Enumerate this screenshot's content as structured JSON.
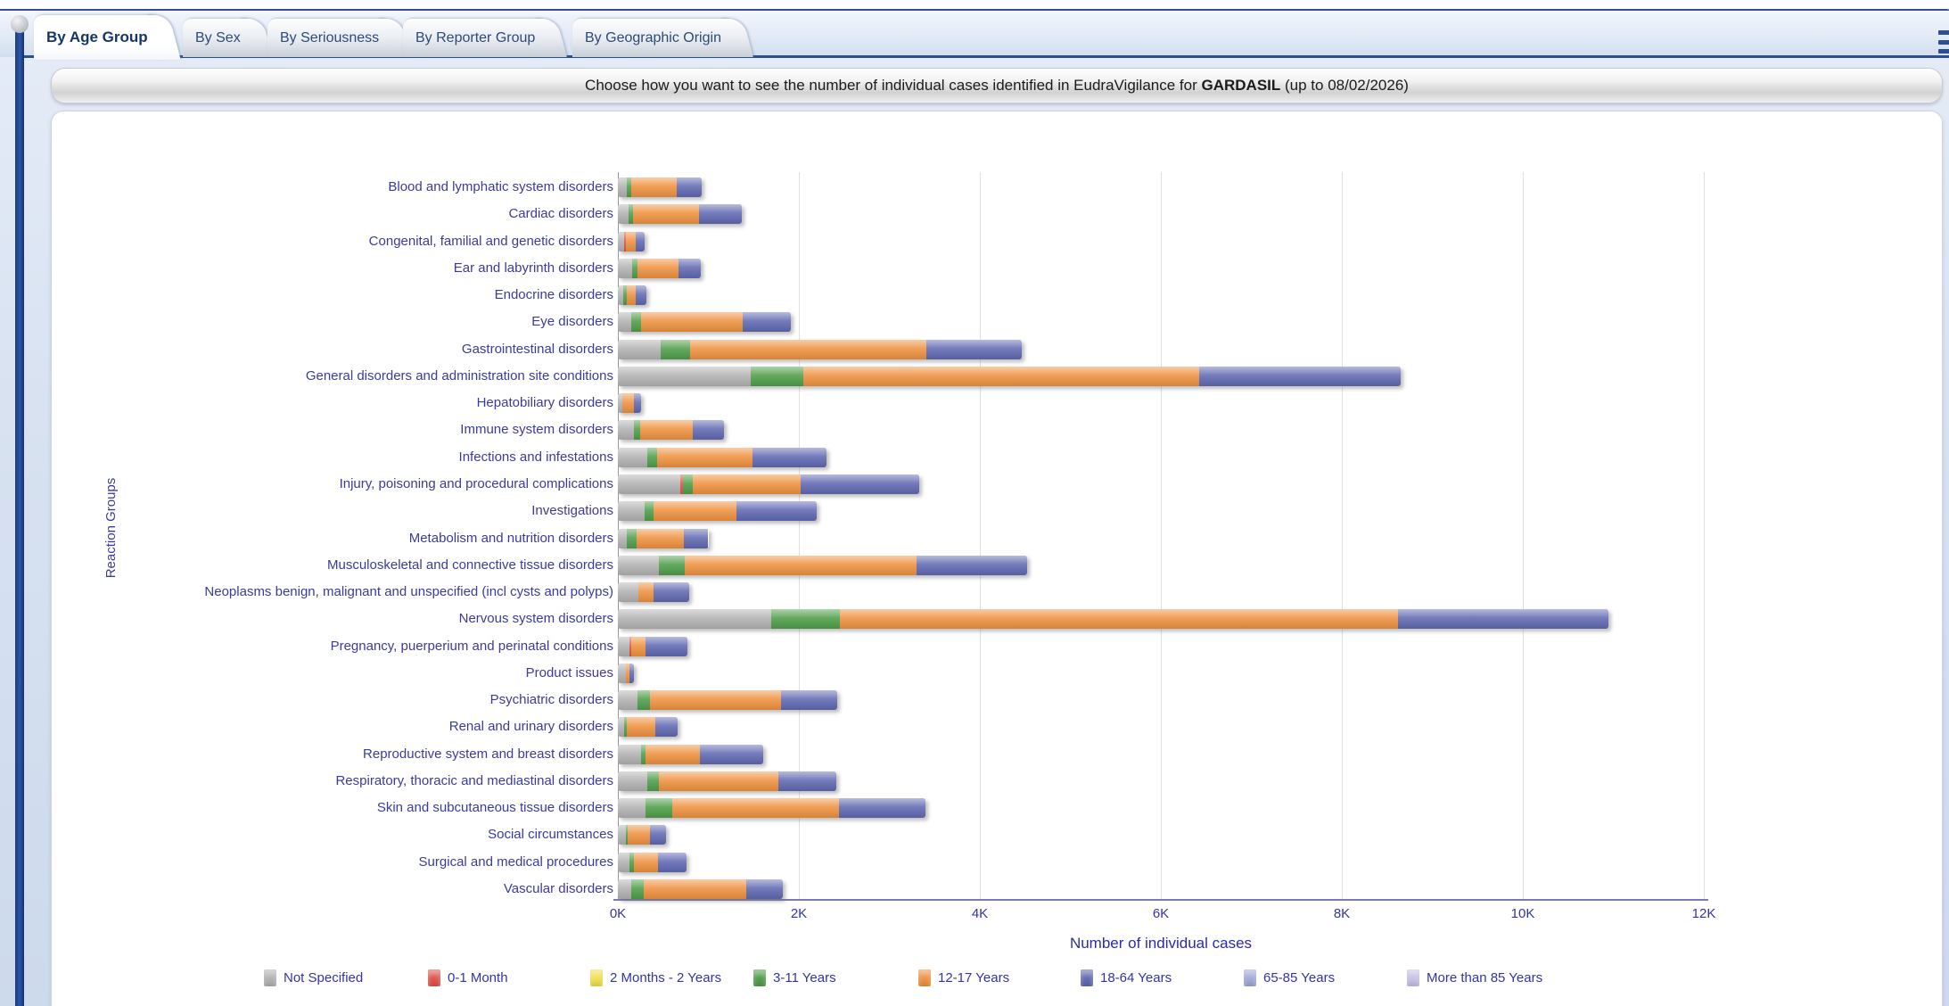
{
  "tabs": [
    {
      "label": "By Age Group",
      "active": true
    },
    {
      "label": "By Sex",
      "active": false
    },
    {
      "label": "By Seriousness",
      "active": false
    },
    {
      "label": "By Reporter Group",
      "active": false
    },
    {
      "label": "By Geographic Origin",
      "active": false
    }
  ],
  "title": {
    "prefix": "Choose how you want to see the number of individual cases identified in EudraVigilance for ",
    "product": "GARDASIL",
    "suffix": " (up to 08/02/2026)"
  },
  "chart_data": {
    "type": "bar",
    "orientation": "horizontal",
    "stacked": true,
    "xlabel": "Number of individual cases",
    "ylabel": "Reaction Groups",
    "xlim": [
      0,
      12000
    ],
    "x_ticks": [
      "0K",
      "2K",
      "4K",
      "6K",
      "8K",
      "10K",
      "12K"
    ],
    "grid": true,
    "legend_position": "bottom",
    "categories": [
      "Blood and lymphatic system disorders",
      "Cardiac disorders",
      "Congenital, familial and genetic disorders",
      "Ear and labyrinth disorders",
      "Endocrine disorders",
      "Eye disorders",
      "Gastrointestinal disorders",
      "General disorders and administration site conditions",
      "Hepatobiliary disorders",
      "Immune system disorders",
      "Infections and infestations",
      "Injury, poisoning and procedural complications",
      "Investigations",
      "Metabolism and nutrition disorders",
      "Musculoskeletal and connective tissue disorders",
      "Neoplasms benign, malignant and unspecified (incl cysts and polyps)",
      "Nervous system disorders",
      "Pregnancy, puerperium and perinatal conditions",
      "Product issues",
      "Psychiatric disorders",
      "Renal and urinary disorders",
      "Reproductive system and breast disorders",
      "Respiratory, thoracic and mediastinal disorders",
      "Skin and subcutaneous tissue disorders",
      "Social circumstances",
      "Surgical and medical procedures",
      "Vascular disorders"
    ],
    "series": [
      {
        "name": "Not Specified",
        "color": "#b2b2b2",
        "values": [
          100,
          120,
          70,
          160,
          60,
          150,
          470,
          1470,
          50,
          180,
          330,
          690,
          300,
          95,
          450,
          230,
          1690,
          130,
          90,
          220,
          70,
          260,
          330,
          310,
          85,
          130,
          150
        ]
      },
      {
        "name": "0-1 Month",
        "color": "#e0534a",
        "values": [
          0,
          0,
          20,
          0,
          0,
          0,
          0,
          0,
          0,
          0,
          0,
          30,
          0,
          0,
          0,
          0,
          0,
          15,
          0,
          0,
          0,
          0,
          0,
          0,
          0,
          0,
          0
        ]
      },
      {
        "name": "2 Months - 2 Years",
        "color": "#f2e04e",
        "values": [
          0,
          0,
          0,
          0,
          0,
          0,
          0,
          0,
          0,
          0,
          0,
          0,
          0,
          0,
          0,
          0,
          0,
          0,
          0,
          0,
          0,
          0,
          0,
          0,
          0,
          0,
          0
        ]
      },
      {
        "name": "3-11 Years",
        "color": "#4f9e4a",
        "values": [
          50,
          50,
          0,
          60,
          40,
          110,
          330,
          580,
          0,
          70,
          100,
          110,
          90,
          110,
          290,
          0,
          760,
          0,
          0,
          130,
          30,
          45,
          120,
          295,
          25,
          45,
          140
        ]
      },
      {
        "name": "12-17 Years",
        "color": "#ef9240",
        "values": [
          500,
          730,
          110,
          450,
          100,
          1120,
          2610,
          4370,
          130,
          580,
          1060,
          1190,
          920,
          520,
          2560,
          165,
          6170,
          160,
          40,
          1450,
          310,
          600,
          1320,
          1840,
          240,
          265,
          1130
        ]
      },
      {
        "name": "18-64 Years",
        "color": "#6169b2",
        "values": [
          275,
          470,
          100,
          250,
          120,
          530,
          1050,
          2230,
          80,
          340,
          820,
          1310,
          890,
          275,
          1220,
          390,
          2330,
          460,
          50,
          620,
          250,
          700,
          640,
          950,
          180,
          320,
          400
        ]
      },
      {
        "name": "65-85 Years",
        "color": "#a3aad8",
        "values": [
          0,
          0,
          0,
          0,
          0,
          0,
          0,
          0,
          0,
          0,
          0,
          0,
          0,
          0,
          0,
          0,
          0,
          0,
          0,
          0,
          0,
          0,
          0,
          0,
          0,
          0,
          0
        ]
      },
      {
        "name": "More than 85 Years",
        "color": "#c8c0e5",
        "values": [
          0,
          0,
          0,
          0,
          0,
          0,
          0,
          0,
          0,
          0,
          0,
          0,
          0,
          0,
          0,
          0,
          0,
          0,
          0,
          0,
          0,
          0,
          0,
          0,
          0,
          0,
          0
        ]
      }
    ]
  }
}
